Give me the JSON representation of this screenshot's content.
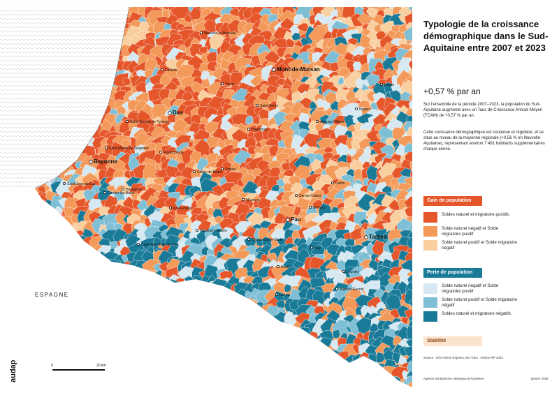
{
  "title": "Typologie de la croissance démographique dans le Sud-Aquitaine entre 2007 et 2023",
  "rate": "+0,57 % par an",
  "para1": "Sur l'ensemble de la période 2007–2023, la population du Sud-Aquitaine augmente avec un Taux de Croissance Annuel Moyen (TCAM) de +0,57 % par an.",
  "para2": "Cette croissance démographique est soutenue et régulière, et se situe au niveau de la moyenne régionale (+0,56 % en Nouvelle-Aquitaine), représentant environ 7 491 habitants supplémentaires chaque année.",
  "legend": {
    "gain_header": "Gain de population",
    "gain_items": [
      {
        "label": "Soldes naturel et migratoire positifs",
        "color": "#e5562a"
      },
      {
        "label": "Solde naturel négatif et Solde migratoire positif",
        "color": "#f39a5b"
      },
      {
        "label": "Solde naturel positif et Solde migratoire négatif",
        "color": "#f9cf9f"
      }
    ],
    "loss_header": "Perte de population",
    "loss_items": [
      {
        "label": "Solde naturel négatif et Solde migratoire positif",
        "color": "#d6e8f1"
      },
      {
        "label": "Solde naturel positif et Solde migratoire négatif",
        "color": "#7fbfd6"
      },
      {
        "label": "Soldes naturel et migratoire négatifs",
        "color": "#1a7b99"
      }
    ],
    "stability": "Stabilité",
    "gain_header_color": "#e5562a",
    "loss_header_color": "#1a7b99",
    "stability_color": "#fbe3cc"
  },
  "source": "Source : IGN-Admin Express, BD-Topo ; INSEE-RP 2023",
  "agency": "Agence d'urbanisme Atlantique & Pyrénées",
  "date": "janvier 2026",
  "logo": "audap",
  "country": "ESPAGNE",
  "scale": {
    "start": "0",
    "end": "20 km"
  },
  "towns": [
    "Morcenx-la-Nouvelle",
    "Castets",
    "Tartas",
    "Mont-de-Marsan",
    "Eauze",
    "Saint-Sever",
    "Nogaro",
    "Dax",
    "Saint-Vincent-de-Tyrosse",
    "Hagetmau",
    "Aire-sur-l'Adour",
    "Saint-Martin-de-Seignanx",
    "Peyrehorade",
    "Bayonne",
    "Salies-de-Béarn",
    "Orthez",
    "Saint-Jean-de-Luz",
    "Cambo-les-Bains",
    "Hasparren",
    "Garlin",
    "Mourenx",
    "Serres-Castet",
    "Morlaàs",
    "Saint-Palais",
    "Pau",
    "Mauléon-Licharre",
    "Tarbes",
    "Oloron-Sainte-Marie",
    "Saint-Jean-Pied-de-Port",
    "Nay",
    "Lourdes",
    "Arudy",
    "Argelès-Gazost",
    "Laruns"
  ]
}
